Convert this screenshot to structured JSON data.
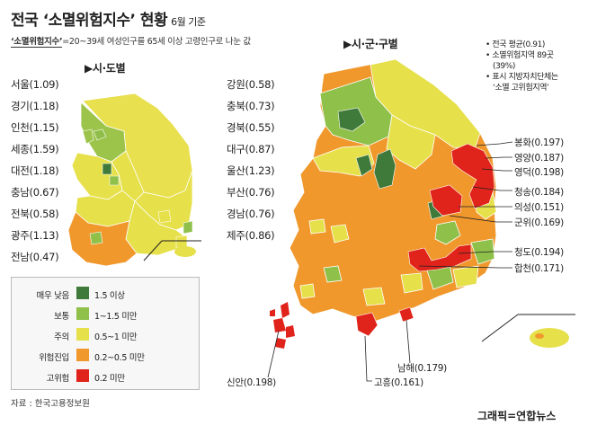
{
  "title": "전국 ‘소멸위험지수’ 현황",
  "date": "6월 기준",
  "subtitle_keyword": "‘소멸위험지수’",
  "subtitle_rest": "=20~39세 여성인구를 65세 이상 고령인구로 나눈 값",
  "section_province": "▶시·도별",
  "section_district": "▶시·군·구별",
  "provinces": [
    {
      "label": "서울(1.09)"
    },
    {
      "label": "경기(1.18)"
    },
    {
      "label": "인천(1.15)"
    },
    {
      "label": "세종(1.59)"
    },
    {
      "label": "대전(1.18)"
    },
    {
      "label": "충남(0.67)"
    },
    {
      "label": "전북(0.58)"
    },
    {
      "label": "광주(1.13)"
    },
    {
      "label": "전남(0.47)"
    },
    {
      "label": "강원(0.58)"
    },
    {
      "label": "충북(0.73)"
    },
    {
      "label": "경북(0.55)"
    },
    {
      "label": "대구(0.87)"
    },
    {
      "label": "울산(1.23)"
    },
    {
      "label": "부산(0.76)"
    },
    {
      "label": "경남(0.76)"
    },
    {
      "label": "제주(0.86)"
    }
  ],
  "info": [
    "• 전국 평균(0.91)",
    "• 소멸위험지역 89곳",
    "(39%)",
    "• 표시 지방자치단체는",
    "‘소멸 고위험지역’"
  ],
  "callouts": [
    {
      "label": "봉화(0.197)"
    },
    {
      "label": "영양(0.187)"
    },
    {
      "label": "영덕(0.198)"
    },
    {
      "label": "청송(0.184)"
    },
    {
      "label": "의성(0.151)"
    },
    {
      "label": "군위(0.169)"
    },
    {
      "label": "청도(0.194)"
    },
    {
      "label": "합천(0.171)"
    },
    {
      "label": "남해(0.179)"
    },
    {
      "label": "고흥(0.161)"
    },
    {
      "label": "신안(0.198)"
    }
  ],
  "legend": [
    {
      "name": "매우 낮음",
      "range": "1.5 이상",
      "color": "#3f7a3a"
    },
    {
      "name": "보통",
      "range": "1~1.5 미만",
      "color": "#8fc04a"
    },
    {
      "name": "주의",
      "range": "0.5~1 미만",
      "color": "#e6e04a"
    },
    {
      "name": "위험진입",
      "range": "0.2~0.5 미만",
      "color": "#f0982c"
    },
    {
      "name": "고위험",
      "range": "0.2 미만",
      "color": "#e0231b"
    }
  ],
  "source": "자료 : 한국고용정보원",
  "credit": "그래픽=연합뉴스"
}
